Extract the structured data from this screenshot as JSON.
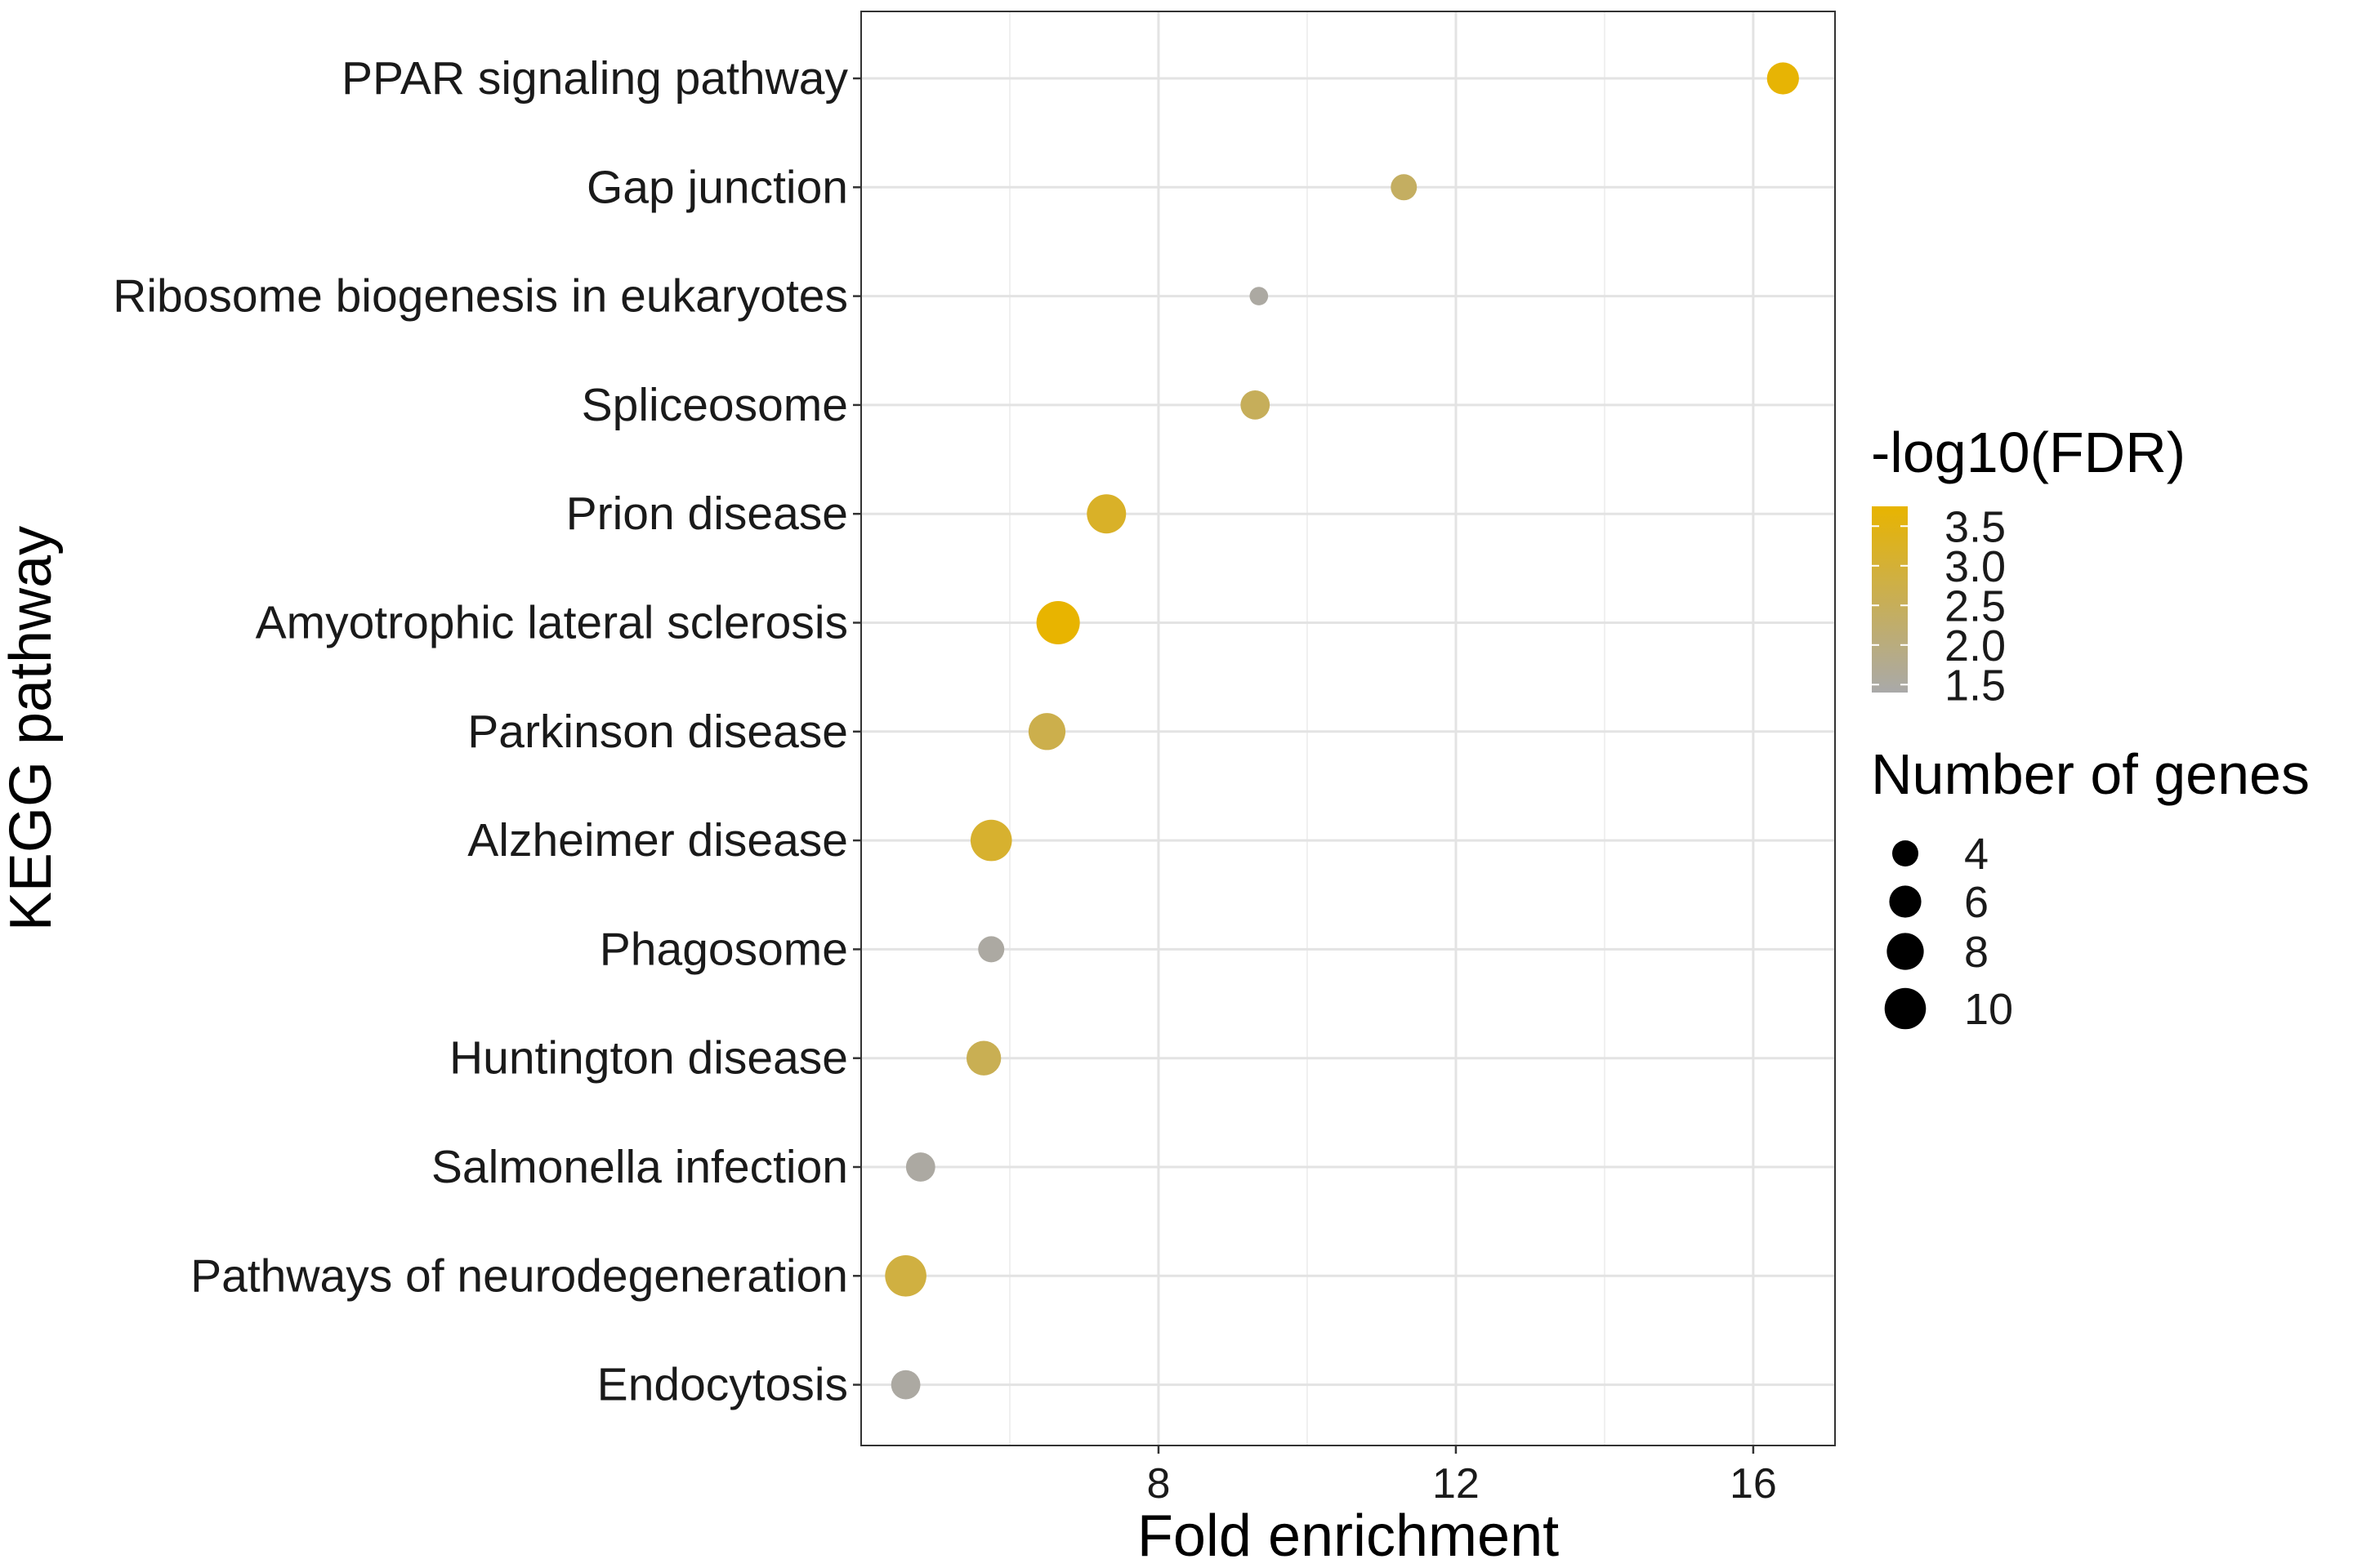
{
  "chart_data": {
    "type": "scatter",
    "xlabel": "Fold enrichment",
    "ylabel": "KEGG pathway",
    "xlim": [
      4.0,
      17.1
    ],
    "x_ticks": [
      8,
      12,
      16
    ],
    "x_tick_labels": [
      "8",
      "12",
      "16"
    ],
    "grid": true,
    "legend_position": "right",
    "color_legend": {
      "title": "-log10(FDR)",
      "range": [
        1.4,
        3.75
      ],
      "ticks": [
        3.5,
        3.0,
        2.5,
        2.0,
        1.5
      ],
      "tick_labels": [
        "3.5",
        "3.0",
        "2.5",
        "2.0",
        "1.5"
      ],
      "low_color": "#a9a9a9",
      "high_color": "#e8b400"
    },
    "size_legend": {
      "title": "Number of genes",
      "values": [
        4,
        6,
        8,
        10
      ],
      "labels": [
        "4",
        "6",
        "8",
        "10"
      ]
    },
    "points": [
      {
        "pathway": "PPAR signaling pathway",
        "fold_enrichment": 16.4,
        "neg_log10_fdr": 3.7,
        "genes": 6
      },
      {
        "pathway": "Gap junction",
        "fold_enrichment": 11.3,
        "neg_log10_fdr": 2.4,
        "genes": 4
      },
      {
        "pathway": "Ribosome biogenesis in eukaryotes",
        "fold_enrichment": 9.35,
        "neg_log10_fdr": 1.5,
        "genes": 2
      },
      {
        "pathway": "Spliceosome",
        "fold_enrichment": 9.3,
        "neg_log10_fdr": 2.5,
        "genes": 5
      },
      {
        "pathway": "Prion disease",
        "fold_enrichment": 7.3,
        "neg_log10_fdr": 3.2,
        "genes": 9
      },
      {
        "pathway": "Amyotrophic lateral sclerosis",
        "fold_enrichment": 6.65,
        "neg_log10_fdr": 3.75,
        "genes": 11
      },
      {
        "pathway": "Parkinson disease",
        "fold_enrichment": 6.5,
        "neg_log10_fdr": 2.7,
        "genes": 8
      },
      {
        "pathway": "Alzheimer disease",
        "fold_enrichment": 5.75,
        "neg_log10_fdr": 3.1,
        "genes": 10
      },
      {
        "pathway": "Phagosome",
        "fold_enrichment": 5.75,
        "neg_log10_fdr": 1.5,
        "genes": 4
      },
      {
        "pathway": "Huntington disease",
        "fold_enrichment": 5.65,
        "neg_log10_fdr": 2.6,
        "genes": 7
      },
      {
        "pathway": "Salmonella infection",
        "fold_enrichment": 4.8,
        "neg_log10_fdr": 1.5,
        "genes": 5
      },
      {
        "pathway": "Pathways of neurodegeneration",
        "fold_enrichment": 4.6,
        "neg_log10_fdr": 2.85,
        "genes": 10
      },
      {
        "pathway": "Endocytosis",
        "fold_enrichment": 4.6,
        "neg_log10_fdr": 1.5,
        "genes": 5
      }
    ]
  }
}
